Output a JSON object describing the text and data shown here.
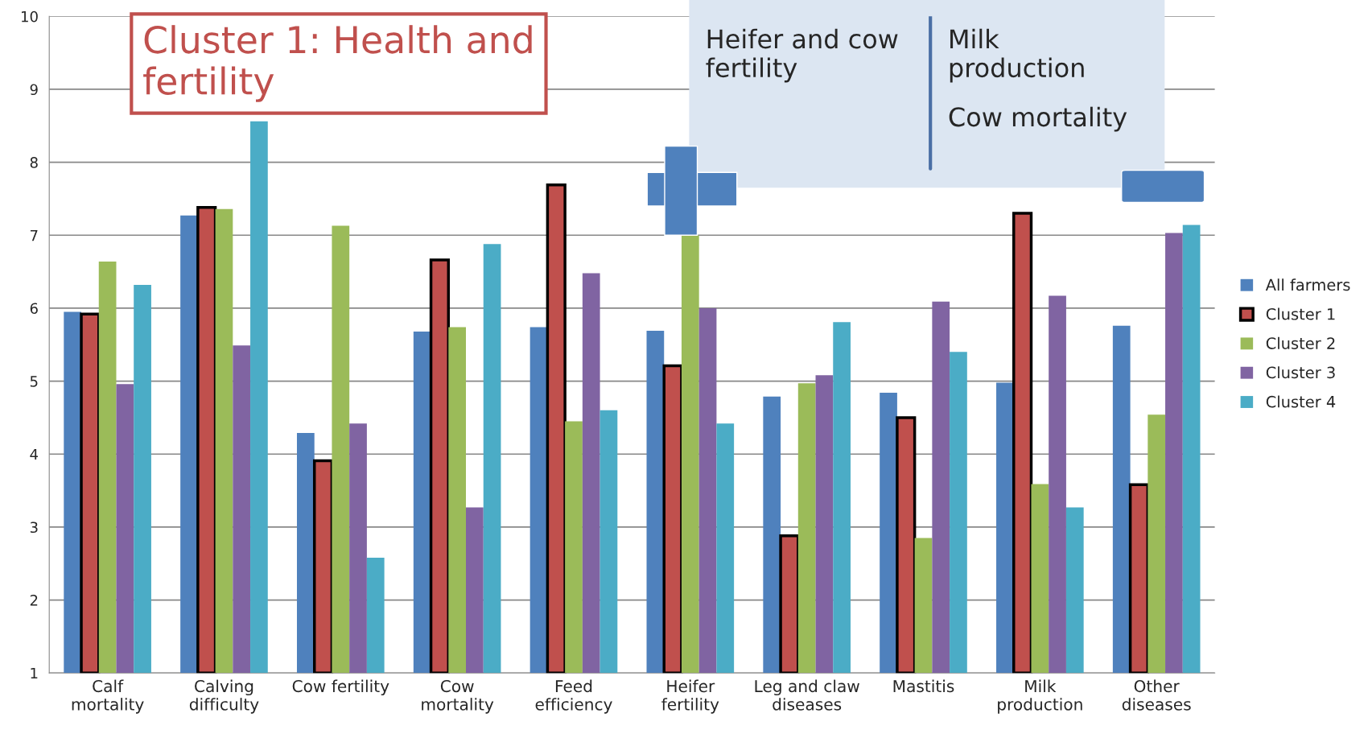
{
  "chart_data": {
    "type": "bar",
    "categories": [
      "Calf\nmortality",
      "Calving\ndifficulty",
      "Cow fertility",
      "Cow\nmortality",
      "Feed\nefficiency",
      "Heifer\nfertility",
      "Leg and claw\ndiseases",
      "Mastitis",
      "Milk\nproduction",
      "Other\ndiseases"
    ],
    "series": [
      {
        "name": "All farmers",
        "color": "#4f81bd",
        "values": [
          5.95,
          7.27,
          4.29,
          5.68,
          5.74,
          5.69,
          4.79,
          4.84,
          4.98,
          5.76
        ]
      },
      {
        "name": "Cluster 1",
        "color": "#c0504d",
        "values": [
          5.92,
          7.38,
          3.91,
          6.66,
          7.69,
          5.21,
          2.88,
          4.5,
          7.3,
          3.58
        ]
      },
      {
        "name": "Cluster 2",
        "color": "#9bbb59",
        "values": [
          6.64,
          7.36,
          7.13,
          5.74,
          4.45,
          7.0,
          4.97,
          2.85,
          3.59,
          4.54
        ]
      },
      {
        "name": "Cluster 3",
        "color": "#8064a2",
        "values": [
          4.96,
          5.49,
          4.42,
          3.27,
          6.48,
          6.0,
          5.08,
          6.09,
          6.17,
          7.03
        ]
      },
      {
        "name": "Cluster 4",
        "color": "#4bacc6",
        "values": [
          6.32,
          8.56,
          2.58,
          6.88,
          4.6,
          4.42,
          5.81,
          5.4,
          3.27,
          7.14
        ]
      }
    ],
    "ylim": [
      1,
      10
    ],
    "yticks": [
      1,
      2,
      3,
      4,
      5,
      6,
      7,
      8,
      9,
      10
    ],
    "grid": "y",
    "legend": "right",
    "annotations": [
      "Cluster 1: Health and\nfertility",
      "Heifer and cow\nfertility",
      "Milk\nproduction",
      "Cow mortality"
    ]
  }
}
